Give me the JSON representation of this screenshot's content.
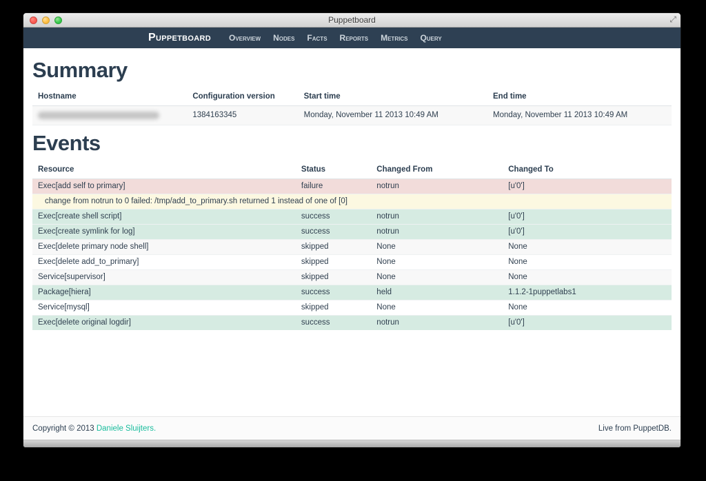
{
  "window": {
    "title": "Puppetboard",
    "fullscreen_icon": "⤢"
  },
  "navbar": {
    "brand": "Puppetboard",
    "items": [
      {
        "label": "Overview"
      },
      {
        "label": "Nodes"
      },
      {
        "label": "Facts"
      },
      {
        "label": "Reports"
      },
      {
        "label": "Metrics"
      },
      {
        "label": "Query"
      }
    ]
  },
  "summary": {
    "heading": "Summary",
    "columns": [
      "Hostname",
      "Configuration version",
      "Start time",
      "End time"
    ],
    "row": {
      "hostname_redacted": true,
      "configuration_version": "1384163345",
      "start_time": "Monday, November 11 2013 10:49 AM",
      "end_time": "Monday, November 11 2013 10:49 AM"
    }
  },
  "events": {
    "heading": "Events",
    "columns": [
      "Resource",
      "Status",
      "Changed From",
      "Changed To"
    ],
    "rows": [
      {
        "type": "failure",
        "resource": "Exec[add self to primary]",
        "status": "failure",
        "from": "notrun",
        "to": "[u'0']"
      },
      {
        "type": "message",
        "message": "change from notrun to 0 failed: /tmp/add_to_primary.sh returned 1 instead of one of [0]"
      },
      {
        "type": "success",
        "resource": "Exec[create shell script]",
        "status": "success",
        "from": "notrun",
        "to": "[u'0']"
      },
      {
        "type": "success",
        "resource": "Exec[create symlink for log]",
        "status": "success",
        "from": "notrun",
        "to": "[u'0']"
      },
      {
        "type": "skipped-odd",
        "resource": "Exec[delete primary node shell]",
        "status": "skipped",
        "from": "None",
        "to": "None"
      },
      {
        "type": "skipped-even",
        "resource": "Exec[delete add_to_primary]",
        "status": "skipped",
        "from": "None",
        "to": "None"
      },
      {
        "type": "skipped-odd",
        "resource": "Service[supervisor]",
        "status": "skipped",
        "from": "None",
        "to": "None"
      },
      {
        "type": "success",
        "resource": "Package[hiera]",
        "status": "success",
        "from": "held",
        "to": "1.1.2-1puppetlabs1"
      },
      {
        "type": "skipped-even",
        "resource": "Service[mysql]",
        "status": "skipped",
        "from": "None",
        "to": "None"
      },
      {
        "type": "success",
        "resource": "Exec[delete original logdir]",
        "status": "success",
        "from": "notrun",
        "to": "[u'0']"
      }
    ]
  },
  "footer": {
    "copyright_prefix": "Copyright © 2013 ",
    "author_link": "Daniele Sluijters.",
    "right_text": "Live from PuppetDB."
  },
  "colors": {
    "navbar_bg": "#2e4053",
    "heading": "#2c3e50",
    "link_teal": "#18bc9c",
    "row_failure": "#f2dcda",
    "row_message": "#fcf8e1",
    "row_success": "#d6ebe2",
    "row_striped": "#f8f8f8"
  }
}
